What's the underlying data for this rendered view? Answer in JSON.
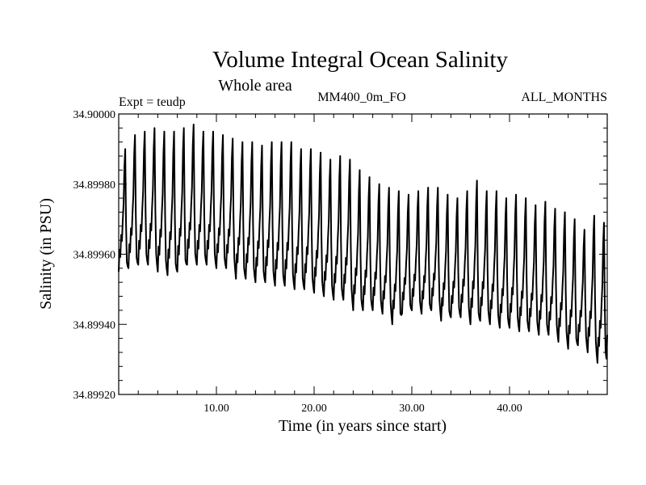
{
  "chart_data": {
    "type": "line",
    "title": "Volume Integral Ocean Salinity",
    "subtitle": "Whole area",
    "left_note": "Expt = teudp",
    "center_note": "MM400_0m_FO",
    "right_note": "ALL_MONTHS",
    "xlabel": "Time (in years since start)",
    "ylabel": "Salinity (in PSU)",
    "xlim": [
      0,
      50
    ],
    "ylim": [
      34.8992,
      34.9
    ],
    "x_ticks": [
      "10.00",
      "20.00",
      "30.00",
      "40.00"
    ],
    "y_ticks": [
      "34.89920",
      "34.89940",
      "34.89960",
      "34.89980",
      "34.90000"
    ],
    "grid": false,
    "series": [
      {
        "annual_max": [
          34.8999,
          34.89994,
          34.89995,
          34.89996,
          34.89995,
          34.89995,
          34.89996,
          34.89997,
          34.89995,
          34.89995,
          34.89994,
          34.89993,
          34.89992,
          34.89992,
          34.89991,
          34.89992,
          34.89992,
          34.89992,
          34.8999,
          34.8999,
          34.89989,
          34.89987,
          34.89988,
          34.89987,
          34.89984,
          34.89982,
          34.8998,
          34.89979,
          34.89978,
          34.89977,
          34.89978,
          34.89979,
          34.89979,
          34.89977,
          34.89976,
          34.89978,
          34.89981,
          34.89978,
          34.89978,
          34.89976,
          34.89977,
          34.89976,
          34.89974,
          34.89975,
          34.89973,
          34.89972,
          34.8997,
          34.89967,
          34.89971,
          34.89969
        ],
        "annual_min": [
          34.89955,
          34.89956,
          34.89957,
          34.89957,
          34.89955,
          34.89954,
          34.89955,
          34.89957,
          34.89957,
          34.89957,
          34.89956,
          34.89956,
          34.89953,
          34.89953,
          34.89952,
          34.89952,
          34.89951,
          34.89951,
          34.8995,
          34.8995,
          34.89949,
          34.89948,
          34.89947,
          34.89947,
          34.89944,
          34.89944,
          34.89944,
          34.89943,
          34.8994,
          34.89943,
          34.89944,
          34.89943,
          34.89944,
          34.89941,
          34.89942,
          34.89942,
          34.8994,
          34.89941,
          34.8994,
          34.89939,
          34.89939,
          34.89938,
          34.89938,
          34.89937,
          34.89937,
          34.89935,
          34.89933,
          34.89934,
          34.89932,
          34.89929
        ]
      }
    ]
  }
}
